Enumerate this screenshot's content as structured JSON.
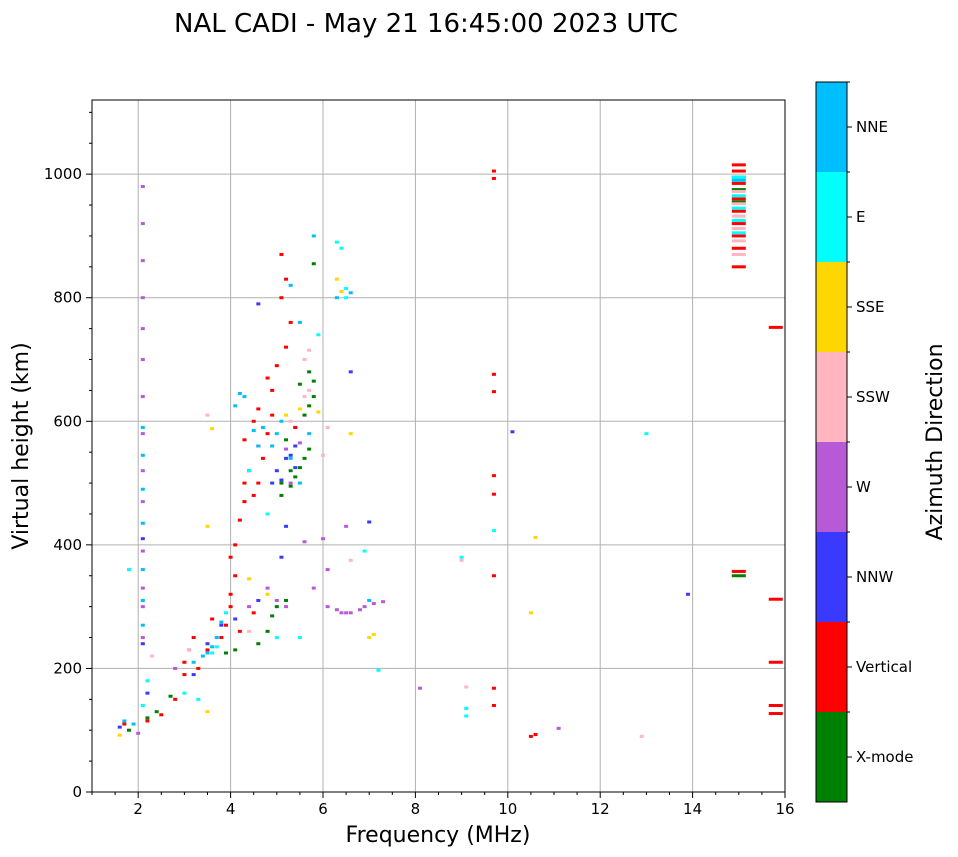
{
  "chart_data": {
    "type": "scatter",
    "title": "NAL CADI - May 21 16:45:00 2023 UTC",
    "xlabel": "Frequency (MHz)",
    "ylabel": "Virtual height (km)",
    "xlim": [
      1,
      16
    ],
    "ylim": [
      0,
      1120
    ],
    "xticks": [
      2,
      4,
      6,
      8,
      10,
      12,
      14,
      16
    ],
    "yticks": [
      0,
      200,
      400,
      600,
      800,
      1000
    ],
    "grid": true,
    "colorbar": {
      "label": "Azimuth Direction",
      "categories": [
        {
          "name": "X-mode",
          "color": "#008000"
        },
        {
          "name": "Vertical",
          "color": "#ff0000"
        },
        {
          "name": "NNW",
          "color": "#3a3aff"
        },
        {
          "name": "W",
          "color": "#b65ad8"
        },
        {
          "name": "SSW",
          "color": "#ffb6c1"
        },
        {
          "name": "SSE",
          "color": "#ffd700"
        },
        {
          "name": "E",
          "color": "#00ffff"
        },
        {
          "name": "NNE",
          "color": "#00bfff"
        }
      ]
    },
    "series": [
      {
        "name": "X-mode",
        "points": [
          [
            3.9,
            225
          ],
          [
            4.1,
            230
          ],
          [
            4.6,
            240
          ],
          [
            4.8,
            260
          ],
          [
            4.9,
            285
          ],
          [
            5.0,
            300
          ],
          [
            5.2,
            310
          ],
          [
            5.1,
            480
          ],
          [
            5.3,
            495
          ],
          [
            5.4,
            510
          ],
          [
            5.5,
            525
          ],
          [
            5.6,
            540
          ],
          [
            5.7,
            555
          ],
          [
            5.2,
            570
          ],
          [
            5.4,
            590
          ],
          [
            5.6,
            610
          ],
          [
            5.7,
            625
          ],
          [
            5.8,
            640
          ],
          [
            5.5,
            660
          ],
          [
            5.8,
            665
          ],
          [
            5.7,
            680
          ],
          [
            5.8,
            855
          ],
          [
            5.1,
            500
          ],
          [
            5.3,
            520
          ],
          [
            15.0,
            350
          ],
          [
            15.0,
            955
          ],
          [
            15.0,
            975
          ],
          [
            15.0,
            995
          ],
          [
            1.8,
            100
          ],
          [
            2.2,
            120
          ],
          [
            2.4,
            130
          ],
          [
            2.7,
            155
          ]
        ]
      },
      {
        "name": "Vertical",
        "points": [
          [
            1.7,
            110
          ],
          [
            2.2,
            115
          ],
          [
            2.5,
            125
          ],
          [
            2.8,
            150
          ],
          [
            3.0,
            190
          ],
          [
            3.0,
            210
          ],
          [
            3.1,
            230
          ],
          [
            3.2,
            250
          ],
          [
            3.3,
            200
          ],
          [
            3.5,
            230
          ],
          [
            3.8,
            250
          ],
          [
            3.9,
            270
          ],
          [
            4.0,
            300
          ],
          [
            4.0,
            320
          ],
          [
            4.1,
            350
          ],
          [
            4.0,
            380
          ],
          [
            4.1,
            400
          ],
          [
            4.2,
            440
          ],
          [
            4.3,
            470
          ],
          [
            4.3,
            500
          ],
          [
            4.4,
            520
          ],
          [
            4.5,
            480
          ],
          [
            4.6,
            500
          ],
          [
            4.7,
            540
          ],
          [
            4.6,
            560
          ],
          [
            4.8,
            580
          ],
          [
            4.5,
            600
          ],
          [
            4.6,
            620
          ],
          [
            4.9,
            650
          ],
          [
            4.8,
            670
          ],
          [
            5.0,
            690
          ],
          [
            5.2,
            720
          ],
          [
            5.3,
            760
          ],
          [
            5.1,
            800
          ],
          [
            5.2,
            830
          ],
          [
            5.1,
            870
          ],
          [
            4.3,
            570
          ],
          [
            4.9,
            610
          ],
          [
            5.4,
            590
          ],
          [
            4.2,
            260
          ],
          [
            4.5,
            290
          ],
          [
            3.6,
            280
          ],
          [
            9.7,
            1005
          ],
          [
            9.7,
            993
          ],
          [
            9.7,
            676
          ],
          [
            9.7,
            648
          ],
          [
            9.7,
            512
          ],
          [
            9.7,
            482
          ],
          [
            9.7,
            350
          ],
          [
            9.7,
            168
          ],
          [
            9.7,
            140
          ],
          [
            10.5,
            90
          ],
          [
            10.6,
            93
          ],
          [
            15.0,
            850
          ],
          [
            15.0,
            880
          ],
          [
            15.0,
            900
          ],
          [
            15.0,
            920
          ],
          [
            15.0,
            940
          ],
          [
            15.0,
            960
          ],
          [
            15.0,
            985
          ],
          [
            15.0,
            1005
          ],
          [
            15.0,
            1015
          ],
          [
            15.0,
            357
          ],
          [
            15.8,
            752
          ],
          [
            15.8,
            312
          ],
          [
            15.8,
            210
          ],
          [
            15.8,
            140
          ],
          [
            15.8,
            127
          ]
        ]
      },
      {
        "name": "NNW",
        "points": [
          [
            1.6,
            105
          ],
          [
            2.1,
            410
          ],
          [
            3.2,
            190
          ],
          [
            3.5,
            240
          ],
          [
            3.8,
            270
          ],
          [
            4.1,
            280
          ],
          [
            4.6,
            310
          ],
          [
            4.6,
            790
          ],
          [
            5.1,
            380
          ],
          [
            5.2,
            430
          ],
          [
            4.9,
            500
          ],
          [
            5.0,
            520
          ],
          [
            5.2,
            540
          ],
          [
            5.4,
            560
          ],
          [
            5.3,
            545
          ],
          [
            5.1,
            505
          ],
          [
            5.4,
            525
          ],
          [
            6.6,
            680
          ],
          [
            7.0,
            437
          ],
          [
            10.1,
            583
          ],
          [
            13.9,
            320
          ],
          [
            2.1,
            240
          ],
          [
            2.2,
            160
          ]
        ]
      },
      {
        "name": "W",
        "points": [
          [
            2.1,
            980
          ],
          [
            2.1,
            920
          ],
          [
            2.1,
            860
          ],
          [
            2.1,
            800
          ],
          [
            2.1,
            750
          ],
          [
            2.1,
            700
          ],
          [
            2.1,
            640
          ],
          [
            2.1,
            580
          ],
          [
            2.1,
            520
          ],
          [
            2.1,
            470
          ],
          [
            2.1,
            390
          ],
          [
            2.1,
            330
          ],
          [
            2.1,
            300
          ],
          [
            2.1,
            250
          ],
          [
            2.0,
            95
          ],
          [
            2.8,
            200
          ],
          [
            4.4,
            300
          ],
          [
            4.8,
            330
          ],
          [
            5.0,
            310
          ],
          [
            5.2,
            300
          ],
          [
            5.8,
            330
          ],
          [
            6.1,
            300
          ],
          [
            6.3,
            295
          ],
          [
            6.4,
            290
          ],
          [
            6.5,
            290
          ],
          [
            6.6,
            290
          ],
          [
            6.8,
            295
          ],
          [
            6.9,
            300
          ],
          [
            7.1,
            305
          ],
          [
            7.3,
            308
          ],
          [
            5.6,
            405
          ],
          [
            6.0,
            410
          ],
          [
            6.1,
            360
          ],
          [
            6.5,
            430
          ],
          [
            8.1,
            168
          ],
          [
            11.1,
            103
          ],
          [
            5.2,
            555
          ],
          [
            5.5,
            565
          ],
          [
            5.3,
            500
          ]
        ]
      },
      {
        "name": "SSW",
        "points": [
          [
            2.3,
            220
          ],
          [
            3.1,
            230
          ],
          [
            3.5,
            610
          ],
          [
            4.4,
            260
          ],
          [
            5.3,
            600
          ],
          [
            5.6,
            640
          ],
          [
            5.7,
            650
          ],
          [
            5.6,
            700
          ],
          [
            5.7,
            715
          ],
          [
            6.0,
            545
          ],
          [
            6.1,
            590
          ],
          [
            6.6,
            375
          ],
          [
            9.0,
            375
          ],
          [
            9.1,
            170
          ],
          [
            12.9,
            90
          ],
          [
            15.0,
            870
          ],
          [
            15.0,
            892
          ],
          [
            15.0,
            912
          ],
          [
            15.0,
            932
          ],
          [
            15.0,
            952
          ],
          [
            15.0,
            972
          ]
        ]
      },
      {
        "name": "SSE",
        "points": [
          [
            1.6,
            92
          ],
          [
            3.5,
            430
          ],
          [
            3.6,
            588
          ],
          [
            3.5,
            130
          ],
          [
            4.4,
            345
          ],
          [
            4.8,
            320
          ],
          [
            5.2,
            610
          ],
          [
            5.9,
            615
          ],
          [
            6.3,
            830
          ],
          [
            6.4,
            810
          ],
          [
            6.6,
            580
          ],
          [
            7.0,
            250
          ],
          [
            7.1,
            255
          ],
          [
            10.5,
            290
          ],
          [
            10.6,
            412
          ],
          [
            5.5,
            620
          ]
        ]
      },
      {
        "name": "E",
        "points": [
          [
            1.8,
            360
          ],
          [
            2.2,
            180
          ],
          [
            2.1,
            140
          ],
          [
            3.0,
            160
          ],
          [
            3.3,
            150
          ],
          [
            3.6,
            225
          ],
          [
            3.7,
            235
          ],
          [
            3.9,
            290
          ],
          [
            4.4,
            520
          ],
          [
            4.8,
            450
          ],
          [
            5.0,
            250
          ],
          [
            5.5,
            250
          ],
          [
            5.9,
            740
          ],
          [
            6.3,
            890
          ],
          [
            6.4,
            880
          ],
          [
            6.5,
            815
          ],
          [
            6.5,
            800
          ],
          [
            6.9,
            390
          ],
          [
            7.2,
            197
          ],
          [
            9.0,
            380
          ],
          [
            9.1,
            123
          ],
          [
            9.1,
            135
          ],
          [
            9.7,
            423
          ],
          [
            13.0,
            580
          ],
          [
            15.0,
            905
          ],
          [
            15.0,
            925
          ],
          [
            15.0,
            945
          ],
          [
            15.0,
            965
          ],
          [
            15.0,
            995
          ]
        ]
      },
      {
        "name": "NNE",
        "points": [
          [
            2.1,
            590
          ],
          [
            2.1,
            545
          ],
          [
            2.1,
            490
          ],
          [
            2.1,
            435
          ],
          [
            2.1,
            360
          ],
          [
            2.1,
            310
          ],
          [
            2.1,
            270
          ],
          [
            1.7,
            115
          ],
          [
            1.9,
            110
          ],
          [
            3.2,
            210
          ],
          [
            3.4,
            220
          ],
          [
            3.5,
            225
          ],
          [
            3.6,
            235
          ],
          [
            3.7,
            250
          ],
          [
            3.8,
            275
          ],
          [
            4.1,
            625
          ],
          [
            4.2,
            645
          ],
          [
            4.3,
            640
          ],
          [
            4.5,
            585
          ],
          [
            4.6,
            560
          ],
          [
            4.7,
            590
          ],
          [
            4.9,
            560
          ],
          [
            5.0,
            580
          ],
          [
            5.1,
            600
          ],
          [
            5.3,
            540
          ],
          [
            5.5,
            500
          ],
          [
            5.7,
            580
          ],
          [
            5.8,
            900
          ],
          [
            5.5,
            760
          ],
          [
            5.3,
            820
          ],
          [
            6.3,
            800
          ],
          [
            6.6,
            808
          ],
          [
            7.0,
            310
          ],
          [
            15.0,
            990
          ]
        ]
      }
    ]
  }
}
